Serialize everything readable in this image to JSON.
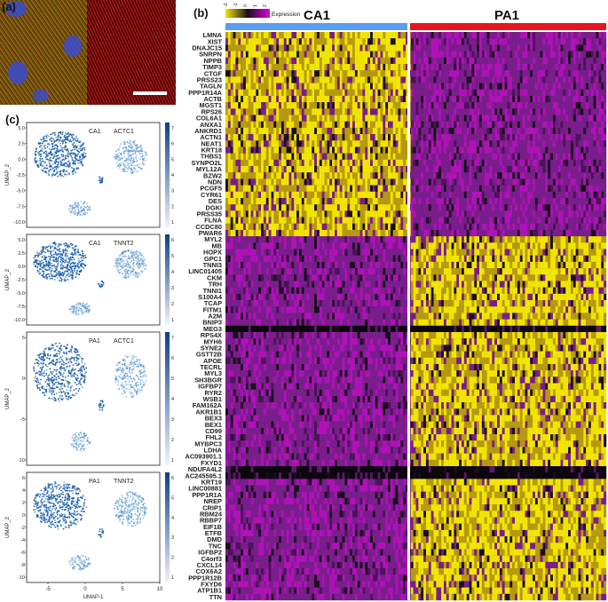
{
  "panels": {
    "a": "(a)",
    "b": "(b)",
    "c": "(c)"
  },
  "colors": {
    "heat_low": "#1a0e1c",
    "heat_mid": "#7a1e8c",
    "heat_high": "#f2e600",
    "ca1_bar": "#5b9ded",
    "pa1_bar": "#e8161c",
    "umap_blue": "#1f5fa8"
  },
  "heatmap": {
    "groups": [
      "CA1",
      "PA1"
    ],
    "legend_title": "Expression",
    "legend_ticks": [
      "-2",
      "-1",
      "0",
      "1",
      "2"
    ],
    "genes": [
      "LMNA",
      "XIST",
      "DNAJC15",
      "SNRPN",
      "NPPB",
      "TIMP3",
      "CTGF",
      "PRSS23",
      "TAGLN",
      "PPP1R14A",
      "ACTB",
      "MGST1",
      "RPS26",
      "COL6A1",
      "ANXA1",
      "ANKRD1",
      "ACTN1",
      "NEAT1",
      "KRT18",
      "THBS1",
      "SYNPO2L",
      "MYL12A",
      "BZW2",
      "NDN",
      "PCGF5",
      "CYR61",
      "DES",
      "DGKI",
      "PRSS35",
      "FLNA",
      "CCDC80",
      "PWAR6",
      "MYL2",
      "MB",
      "HOPX",
      "GPC1",
      "TNNI3",
      "LINC01405",
      "CKM",
      "TRH",
      "TNNI1",
      "S100A4",
      "TCAP",
      "FITM1",
      "A2M",
      "BNIP3",
      "MEG3",
      "RPS4X",
      "MYH6",
      "SYNE2",
      "GSTT2B",
      "APOE",
      "TECRL",
      "MYL3",
      "SH3BGR",
      "IGFBP7",
      "RYR2",
      "WSB1",
      "FAM162A",
      "AKR1B1",
      "BEX3",
      "BEX1",
      "CD99",
      "FHL2",
      "MYBPC3",
      "LDHA",
      "AC093901.1",
      "FXYD1",
      "NDUFA4L2",
      "AC245595.1",
      "KRT19",
      "LINC00881",
      "PPP1R1A",
      "NREP",
      "CRIP1",
      "RBM24",
      "RBBP7",
      "EIF1B",
      "ETFB",
      "DMD",
      "TNC",
      "IGFBP2",
      "C4orf3",
      "CXCL14",
      "COX6A2",
      "PPP1R12B",
      "FXYD6",
      "ATP1B1",
      "TTN"
    ],
    "ca1_high_rows": 32
  },
  "umap_panels": [
    {
      "sample": "CA1",
      "gene": "ACTC1",
      "ylabel": "UMAP_2",
      "xlabel": "",
      "cbar_ticks": [
        "7",
        "6",
        "5",
        "4",
        "3",
        "2",
        "1"
      ],
      "yticks": [
        "5.0",
        "2.5",
        "0.0",
        "-2.5",
        "-5.0",
        "-7.5",
        "-10.0"
      ],
      "xticks": []
    },
    {
      "sample": "CA1",
      "gene": "TNNT2",
      "ylabel": "UMAP_2",
      "xlabel": "",
      "cbar_ticks": [
        "6",
        "5",
        "4",
        "3",
        "2",
        "1"
      ],
      "yticks": [
        "5.0",
        "2.5",
        "0.0",
        "-2.5",
        "-5.0",
        "-7.5",
        "-10.0"
      ],
      "xticks": []
    },
    {
      "sample": "PA1",
      "gene": "ACTC1",
      "ylabel": "UMAP_2",
      "xlabel": "",
      "cbar_ticks": [
        "7",
        "6",
        "5",
        "4",
        "3",
        "2",
        "1"
      ],
      "yticks": [
        "5",
        "0",
        "-5",
        "-10"
      ],
      "xticks": []
    },
    {
      "sample": "PA1",
      "gene": "TNNT2",
      "ylabel": "UMAP_2",
      "xlabel": "UMAP-1",
      "cbar_ticks": [
        "6",
        "5",
        "4",
        "3",
        "2",
        "1"
      ],
      "yticks": [
        "6",
        "4",
        "2",
        "0",
        "-2",
        "-4",
        "-6",
        "-8",
        "-10"
      ],
      "xticks": [
        "-5",
        "0",
        "5",
        "10"
      ]
    }
  ]
}
